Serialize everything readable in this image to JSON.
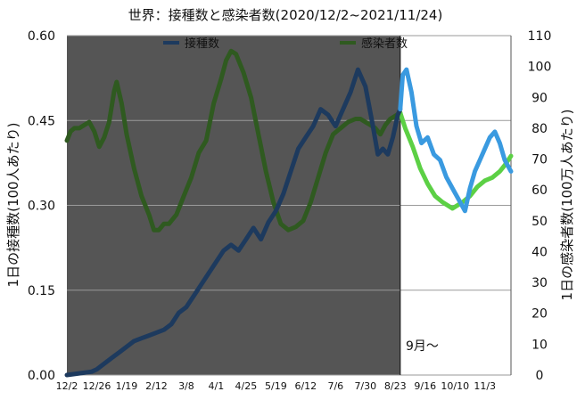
{
  "chart_data": {
    "type": "line",
    "title": "世界：接種数と感染者数(2020/12/2~2021/11/24)",
    "xlabel": "",
    "ylabel": "1日の接種数(100人あたり)",
    "y2label": "1日の感染者数(100万人あたり)",
    "ylim": [
      0,
      0.6
    ],
    "y2lim": [
      0,
      110
    ],
    "yticks": [
      "0.00",
      "0.15",
      "0.30",
      "0.45",
      "0.60"
    ],
    "y2ticks": [
      "0",
      "10",
      "20",
      "30",
      "40",
      "50",
      "60",
      "70",
      "80",
      "90",
      "100",
      "110"
    ],
    "xticks": [
      "12/2",
      "12/26",
      "1/19",
      "2/12",
      "3/8",
      "4/1",
      "4/25",
      "5/19",
      "6/12",
      "7/6",
      "7/30",
      "8/23",
      "9/16",
      "10/10",
      "11/3"
    ],
    "x_range_days": [
      0,
      357
    ],
    "shaded_until_day": 268,
    "annotation": "9月〜",
    "grid": true,
    "legend_placement": "top",
    "series": [
      {
        "name": "接種数",
        "axis": "left",
        "color_before": "#1d3a5e",
        "color_after": "#3a9ae0",
        "points": [
          [
            0,
            0.0
          ],
          [
            10,
            0.003
          ],
          [
            20,
            0.006
          ],
          [
            24,
            0.01
          ],
          [
            30,
            0.02
          ],
          [
            36,
            0.03
          ],
          [
            42,
            0.04
          ],
          [
            48,
            0.05
          ],
          [
            54,
            0.06
          ],
          [
            60,
            0.065
          ],
          [
            66,
            0.07
          ],
          [
            72,
            0.075
          ],
          [
            78,
            0.08
          ],
          [
            84,
            0.09
          ],
          [
            90,
            0.11
          ],
          [
            96,
            0.12
          ],
          [
            102,
            0.14
          ],
          [
            108,
            0.16
          ],
          [
            114,
            0.18
          ],
          [
            120,
            0.2
          ],
          [
            126,
            0.22
          ],
          [
            132,
            0.23
          ],
          [
            138,
            0.22
          ],
          [
            144,
            0.24
          ],
          [
            150,
            0.26
          ],
          [
            156,
            0.24
          ],
          [
            162,
            0.27
          ],
          [
            168,
            0.29
          ],
          [
            174,
            0.32
          ],
          [
            180,
            0.36
          ],
          [
            186,
            0.4
          ],
          [
            192,
            0.42
          ],
          [
            198,
            0.44
          ],
          [
            204,
            0.47
          ],
          [
            210,
            0.46
          ],
          [
            216,
            0.44
          ],
          [
            222,
            0.47
          ],
          [
            228,
            0.5
          ],
          [
            234,
            0.54
          ],
          [
            240,
            0.51
          ],
          [
            246,
            0.44
          ],
          [
            250,
            0.39
          ],
          [
            254,
            0.4
          ],
          [
            258,
            0.39
          ],
          [
            262,
            0.42
          ],
          [
            266,
            0.46
          ],
          [
            268,
            0.47
          ],
          [
            270,
            0.53
          ],
          [
            273,
            0.54
          ],
          [
            277,
            0.5
          ],
          [
            281,
            0.44
          ],
          [
            285,
            0.41
          ],
          [
            290,
            0.42
          ],
          [
            295,
            0.39
          ],
          [
            300,
            0.38
          ],
          [
            305,
            0.35
          ],
          [
            310,
            0.33
          ],
          [
            315,
            0.31
          ],
          [
            320,
            0.29
          ],
          [
            324,
            0.33
          ],
          [
            328,
            0.36
          ],
          [
            332,
            0.38
          ],
          [
            336,
            0.4
          ],
          [
            340,
            0.42
          ],
          [
            344,
            0.43
          ],
          [
            348,
            0.41
          ],
          [
            352,
            0.38
          ],
          [
            357,
            0.36
          ]
        ]
      },
      {
        "name": "感染者数",
        "axis": "right",
        "color_before": "#2f5a20",
        "color_after": "#5cd045",
        "points": [
          [
            0,
            76
          ],
          [
            3,
            79
          ],
          [
            6,
            80
          ],
          [
            10,
            80
          ],
          [
            14,
            81
          ],
          [
            18,
            82
          ],
          [
            22,
            79
          ],
          [
            26,
            74
          ],
          [
            30,
            77
          ],
          [
            34,
            82
          ],
          [
            38,
            92
          ],
          [
            40,
            95
          ],
          [
            44,
            88
          ],
          [
            48,
            78
          ],
          [
            54,
            67
          ],
          [
            60,
            58
          ],
          [
            66,
            52
          ],
          [
            70,
            47
          ],
          [
            74,
            47
          ],
          [
            78,
            49
          ],
          [
            82,
            49
          ],
          [
            88,
            52
          ],
          [
            94,
            58
          ],
          [
            100,
            64
          ],
          [
            106,
            72
          ],
          [
            112,
            76
          ],
          [
            118,
            88
          ],
          [
            124,
            96
          ],
          [
            128,
            102
          ],
          [
            132,
            105
          ],
          [
            136,
            104
          ],
          [
            142,
            98
          ],
          [
            148,
            90
          ],
          [
            154,
            78
          ],
          [
            160,
            66
          ],
          [
            166,
            56
          ],
          [
            172,
            49
          ],
          [
            178,
            47
          ],
          [
            184,
            48
          ],
          [
            190,
            50
          ],
          [
            196,
            56
          ],
          [
            202,
            64
          ],
          [
            208,
            72
          ],
          [
            214,
            78
          ],
          [
            220,
            80
          ],
          [
            226,
            82
          ],
          [
            232,
            83
          ],
          [
            236,
            83
          ],
          [
            240,
            82
          ],
          [
            244,
            81
          ],
          [
            248,
            80
          ],
          [
            252,
            78
          ],
          [
            256,
            81
          ],
          [
            260,
            83
          ],
          [
            264,
            84
          ],
          [
            268,
            85
          ],
          [
            272,
            80
          ],
          [
            278,
            74
          ],
          [
            284,
            67
          ],
          [
            290,
            62
          ],
          [
            296,
            58
          ],
          [
            302,
            56
          ],
          [
            306,
            55
          ],
          [
            310,
            54
          ],
          [
            314,
            55
          ],
          [
            318,
            56
          ],
          [
            324,
            58
          ],
          [
            330,
            61
          ],
          [
            336,
            63
          ],
          [
            342,
            64
          ],
          [
            348,
            66
          ],
          [
            352,
            68
          ],
          [
            357,
            71
          ]
        ]
      }
    ]
  }
}
